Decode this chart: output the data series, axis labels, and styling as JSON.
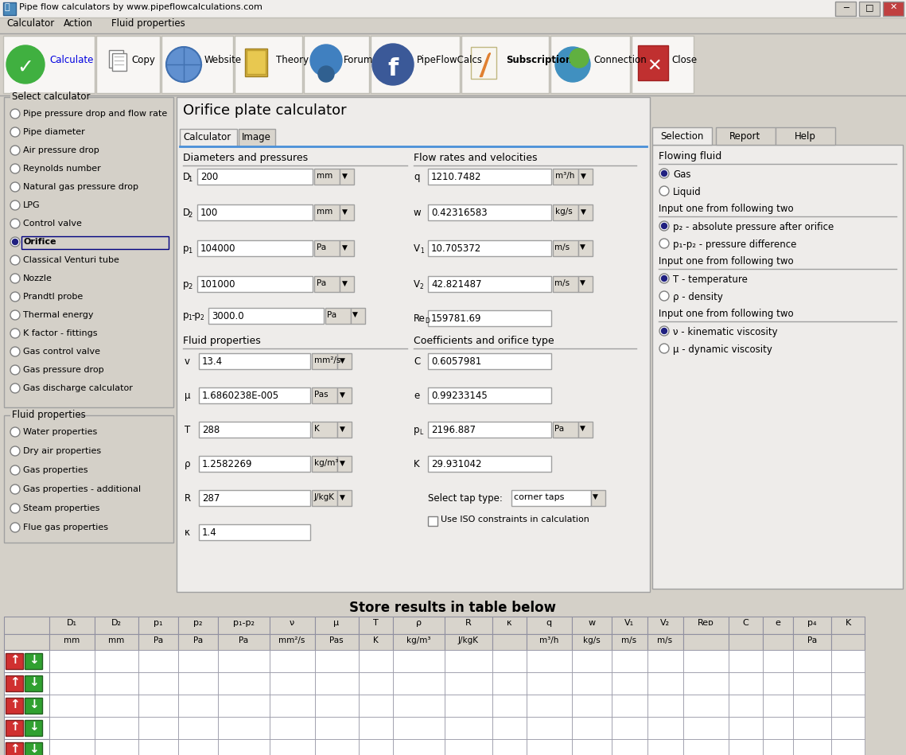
{
  "title_bar": "Pipe flow calculators by www.pipeflowcalculations.com",
  "menu_items": [
    "Calculator",
    "Action",
    "Fluid properties"
  ],
  "select_calc_items": [
    "Pipe pressure drop and flow rate",
    "Pipe diameter",
    "Air pressure drop",
    "Reynolds number",
    "Natural gas pressure drop",
    "LPG",
    "Control valve",
    "Orifice",
    "Classical Venturi tube",
    "Nozzle",
    "Prandtl probe",
    "Thermal energy",
    "K factor - fittings",
    "Gas control valve",
    "Gas pressure drop",
    "Gas discharge calculator"
  ],
  "selected_calc_index": 7,
  "fluid_props_items": [
    "Water properties",
    "Dry air properties",
    "Gas properties",
    "Gas properties - additional",
    "Steam properties",
    "Flue gas properties"
  ],
  "right_panel": {
    "flowing_fluid": "Flowing fluid",
    "gas": "Gas",
    "liquid": "Liquid",
    "input1": "Input one from following two",
    "p2_abs": "p₂ - absolute pressure after orifice",
    "p1p2_diff": "p₁-p₂ - pressure difference",
    "input2": "Input one from following two",
    "T_temp": "T - temperature",
    "rho_dens": "ρ - density",
    "input3": "Input one from following two",
    "nu_kin": "ν - kinematic viscosity",
    "mu_dyn": "μ - dynamic viscosity"
  },
  "table_headers": [
    "D₁",
    "D₂",
    "p₁",
    "p₂",
    "p₁-p₂",
    "ν",
    "μ",
    "T",
    "ρ",
    "R",
    "κ",
    "q",
    "w",
    "V₁",
    "V₂",
    "Reᴅ",
    "C",
    "e",
    "p₄",
    "K"
  ],
  "table_units": [
    "mm",
    "mm",
    "Pa",
    "Pa",
    "Pa",
    "mm²/s",
    "Pas",
    "K",
    "kg/m³",
    "J/kgK",
    "",
    "m³/h",
    "kg/s",
    "m/s",
    "m/s",
    "",
    "",
    "",
    "Pa",
    ""
  ],
  "bg_color": "#d4d0c8",
  "light_gray": "#e8e4e0",
  "panel_color": "#eeecea",
  "white": "#ffffff",
  "border_dark": "#a0a0a0",
  "border_light": "#c8c4bc",
  "blue_line": "#4a90d9",
  "toolbar_btn_bg": "#f0eeec",
  "tab_selected": "#eeecea",
  "tab_unselected": "#d8d4cc"
}
